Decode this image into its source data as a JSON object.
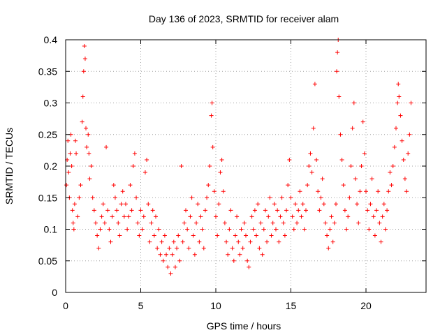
{
  "chart_data": {
    "type": "scatter",
    "title": "Day 136 of 2023, SRMTID for receiver alam",
    "xlabel": "GPS time / hours",
    "ylabel": "SRMTID / TECUs",
    "xlim": [
      0,
      24
    ],
    "ylim": [
      0,
      0.4
    ],
    "xticks": [
      0,
      5,
      10,
      15,
      20
    ],
    "xtick_labels": [
      "0",
      "5",
      "10",
      "15",
      "20"
    ],
    "yticks": [
      0,
      0.05,
      0.1,
      0.15,
      0.2,
      0.25,
      0.3,
      0.35,
      0.4
    ],
    "ytick_labels": [
      "0",
      "0.05",
      "0.1",
      "0.15",
      "0.2",
      "0.25",
      "0.3",
      "0.35",
      "0.4"
    ],
    "grid": true,
    "marker": "+",
    "color": "#ff0000",
    "series": [
      {
        "name": "SRMTID",
        "points": [
          [
            0.05,
            0.17
          ],
          [
            0.1,
            0.21
          ],
          [
            0.15,
            0.24
          ],
          [
            0.2,
            0.19
          ],
          [
            0.25,
            0.15
          ],
          [
            0.3,
            0.22
          ],
          [
            0.35,
            0.25
          ],
          [
            0.4,
            0.2
          ],
          [
            0.45,
            0.13
          ],
          [
            0.5,
            0.11
          ],
          [
            0.55,
            0.1
          ],
          [
            0.6,
            0.14
          ],
          [
            0.65,
            0.24
          ],
          [
            0.7,
            0.22
          ],
          [
            0.8,
            0.12
          ],
          [
            0.9,
            0.15
          ],
          [
            1.0,
            0.17
          ],
          [
            1.1,
            0.27
          ],
          [
            1.15,
            0.31
          ],
          [
            1.2,
            0.35
          ],
          [
            1.25,
            0.39
          ],
          [
            1.3,
            0.37
          ],
          [
            1.35,
            0.26
          ],
          [
            1.4,
            0.23
          ],
          [
            1.5,
            0.25
          ],
          [
            1.55,
            0.22
          ],
          [
            1.6,
            0.18
          ],
          [
            1.7,
            0.2
          ],
          [
            1.8,
            0.15
          ],
          [
            1.9,
            0.13
          ],
          [
            2.0,
            0.11
          ],
          [
            2.1,
            0.09
          ],
          [
            2.2,
            0.07
          ],
          [
            2.3,
            0.1
          ],
          [
            2.4,
            0.12
          ],
          [
            2.5,
            0.14
          ],
          [
            2.6,
            0.11
          ],
          [
            2.7,
            0.23
          ],
          [
            2.8,
            0.13
          ],
          [
            2.9,
            0.1
          ],
          [
            3.0,
            0.08
          ],
          [
            3.1,
            0.12
          ],
          [
            3.2,
            0.17
          ],
          [
            3.3,
            0.15
          ],
          [
            3.4,
            0.13
          ],
          [
            3.5,
            0.11
          ],
          [
            3.6,
            0.09
          ],
          [
            3.7,
            0.14
          ],
          [
            3.8,
            0.16
          ],
          [
            3.9,
            0.12
          ],
          [
            4.0,
            0.14
          ],
          [
            4.1,
            0.1
          ],
          [
            4.2,
            0.12
          ],
          [
            4.3,
            0.17
          ],
          [
            4.4,
            0.13
          ],
          [
            4.5,
            0.2
          ],
          [
            4.6,
            0.22
          ],
          [
            4.7,
            0.15
          ],
          [
            4.8,
            0.11
          ],
          [
            4.9,
            0.09
          ],
          [
            5.0,
            0.13
          ],
          [
            5.1,
            0.1
          ],
          [
            5.2,
            0.12
          ],
          [
            5.3,
            0.19
          ],
          [
            5.4,
            0.21
          ],
          [
            5.5,
            0.14
          ],
          [
            5.6,
            0.08
          ],
          [
            5.7,
            0.11
          ],
          [
            5.8,
            0.13
          ],
          [
            5.9,
            0.09
          ],
          [
            6.0,
            0.12
          ],
          [
            6.1,
            0.07
          ],
          [
            6.2,
            0.1
          ],
          [
            6.3,
            0.06
          ],
          [
            6.4,
            0.08
          ],
          [
            6.5,
            0.05
          ],
          [
            6.6,
            0.09
          ],
          [
            6.7,
            0.06
          ],
          [
            6.8,
            0.04
          ],
          [
            6.9,
            0.07
          ],
          [
            7.0,
            0.03
          ],
          [
            7.1,
            0.06
          ],
          [
            7.2,
            0.08
          ],
          [
            7.3,
            0.04
          ],
          [
            7.4,
            0.07
          ],
          [
            7.5,
            0.09
          ],
          [
            7.6,
            0.05
          ],
          [
            7.7,
            0.2
          ],
          [
            7.8,
            0.08
          ],
          [
            7.9,
            0.11
          ],
          [
            8.0,
            0.13
          ],
          [
            8.1,
            0.1
          ],
          [
            8.2,
            0.07
          ],
          [
            8.3,
            0.12
          ],
          [
            8.4,
            0.15
          ],
          [
            8.5,
            0.09
          ],
          [
            8.6,
            0.06
          ],
          [
            8.7,
            0.11
          ],
          [
            8.8,
            0.14
          ],
          [
            8.9,
            0.08
          ],
          [
            9.0,
            0.12
          ],
          [
            9.1,
            0.1
          ],
          [
            9.2,
            0.07
          ],
          [
            9.3,
            0.13
          ],
          [
            9.4,
            0.15
          ],
          [
            9.5,
            0.17
          ],
          [
            9.6,
            0.2
          ],
          [
            9.7,
            0.28
          ],
          [
            9.75,
            0.3
          ],
          [
            9.8,
            0.23
          ],
          [
            9.9,
            0.16
          ],
          [
            10.0,
            0.12
          ],
          [
            10.1,
            0.09
          ],
          [
            10.2,
            0.14
          ],
          [
            10.3,
            0.19
          ],
          [
            10.4,
            0.21
          ],
          [
            10.5,
            0.16
          ],
          [
            10.6,
            0.11
          ],
          [
            10.7,
            0.08
          ],
          [
            10.8,
            0.06
          ],
          [
            10.9,
            0.1
          ],
          [
            11.0,
            0.13
          ],
          [
            11.1,
            0.07
          ],
          [
            11.2,
            0.05
          ],
          [
            11.3,
            0.09
          ],
          [
            11.4,
            0.12
          ],
          [
            11.5,
            0.08
          ],
          [
            11.6,
            0.06
          ],
          [
            11.7,
            0.1
          ],
          [
            11.8,
            0.07
          ],
          [
            11.9,
            0.11
          ],
          [
            12.0,
            0.09
          ],
          [
            12.1,
            0.05
          ],
          [
            12.2,
            0.04
          ],
          [
            12.3,
            0.08
          ],
          [
            12.4,
            0.12
          ],
          [
            12.5,
            0.1
          ],
          [
            12.6,
            0.13
          ],
          [
            12.7,
            0.09
          ],
          [
            12.8,
            0.14
          ],
          [
            12.9,
            0.07
          ],
          [
            13.0,
            0.11
          ],
          [
            13.1,
            0.06
          ],
          [
            13.2,
            0.1
          ],
          [
            13.3,
            0.13
          ],
          [
            13.4,
            0.08
          ],
          [
            13.5,
            0.12
          ],
          [
            13.6,
            0.15
          ],
          [
            13.7,
            0.09
          ],
          [
            13.8,
            0.11
          ],
          [
            13.9,
            0.14
          ],
          [
            14.0,
            0.1
          ],
          [
            14.1,
            0.13
          ],
          [
            14.2,
            0.08
          ],
          [
            14.3,
            0.12
          ],
          [
            14.4,
            0.15
          ],
          [
            14.5,
            0.11
          ],
          [
            14.6,
            0.09
          ],
          [
            14.7,
            0.13
          ],
          [
            14.8,
            0.17
          ],
          [
            14.9,
            0.21
          ],
          [
            15.0,
            0.15
          ],
          [
            15.1,
            0.12
          ],
          [
            15.2,
            0.1
          ],
          [
            15.3,
            0.14
          ],
          [
            15.4,
            0.11
          ],
          [
            15.5,
            0.13
          ],
          [
            15.6,
            0.16
          ],
          [
            15.7,
            0.12
          ],
          [
            15.8,
            0.14
          ],
          [
            15.9,
            0.1
          ],
          [
            16.0,
            0.13
          ],
          [
            16.1,
            0.17
          ],
          [
            16.2,
            0.2
          ],
          [
            16.3,
            0.22
          ],
          [
            16.4,
            0.19
          ],
          [
            16.5,
            0.26
          ],
          [
            16.6,
            0.33
          ],
          [
            16.7,
            0.21
          ],
          [
            16.8,
            0.16
          ],
          [
            16.9,
            0.13
          ],
          [
            17.0,
            0.15
          ],
          [
            17.1,
            0.18
          ],
          [
            17.2,
            0.14
          ],
          [
            17.3,
            0.11
          ],
          [
            17.4,
            0.09
          ],
          [
            17.5,
            0.07
          ],
          [
            17.6,
            0.1
          ],
          [
            17.7,
            0.12
          ],
          [
            17.8,
            0.08
          ],
          [
            17.9,
            0.11
          ],
          [
            18.0,
            0.14
          ],
          [
            18.05,
            0.35
          ],
          [
            18.1,
            0.38
          ],
          [
            18.15,
            0.4
          ],
          [
            18.2,
            0.31
          ],
          [
            18.3,
            0.25
          ],
          [
            18.4,
            0.21
          ],
          [
            18.5,
            0.17
          ],
          [
            18.6,
            0.13
          ],
          [
            18.7,
            0.1
          ],
          [
            18.8,
            0.12
          ],
          [
            18.9,
            0.15
          ],
          [
            19.0,
            0.2
          ],
          [
            19.1,
            0.26
          ],
          [
            19.2,
            0.3
          ],
          [
            19.3,
            0.18
          ],
          [
            19.4,
            0.14
          ],
          [
            19.5,
            0.11
          ],
          [
            19.6,
            0.16
          ],
          [
            19.7,
            0.2
          ],
          [
            19.8,
            0.27
          ],
          [
            19.9,
            0.22
          ],
          [
            20.0,
            0.16
          ],
          [
            20.1,
            0.13
          ],
          [
            20.2,
            0.1
          ],
          [
            20.3,
            0.14
          ],
          [
            20.4,
            0.18
          ],
          [
            20.5,
            0.12
          ],
          [
            20.6,
            0.09
          ],
          [
            20.7,
            0.13
          ],
          [
            20.8,
            0.16
          ],
          [
            20.9,
            0.11
          ],
          [
            21.0,
            0.08
          ],
          [
            21.1,
            0.12
          ],
          [
            21.2,
            0.14
          ],
          [
            21.3,
            0.1
          ],
          [
            21.4,
            0.13
          ],
          [
            21.5,
            0.16
          ],
          [
            21.6,
            0.19
          ],
          [
            21.7,
            0.17
          ],
          [
            21.8,
            0.2
          ],
          [
            21.9,
            0.23
          ],
          [
            22.0,
            0.26
          ],
          [
            22.1,
            0.3
          ],
          [
            22.15,
            0.33
          ],
          [
            22.2,
            0.31
          ],
          [
            22.3,
            0.28
          ],
          [
            22.4,
            0.24
          ],
          [
            22.5,
            0.21
          ],
          [
            22.6,
            0.18
          ],
          [
            22.7,
            0.16
          ],
          [
            22.8,
            0.22
          ],
          [
            22.9,
            0.25
          ],
          [
            23.0,
            0.3
          ]
        ]
      }
    ]
  }
}
